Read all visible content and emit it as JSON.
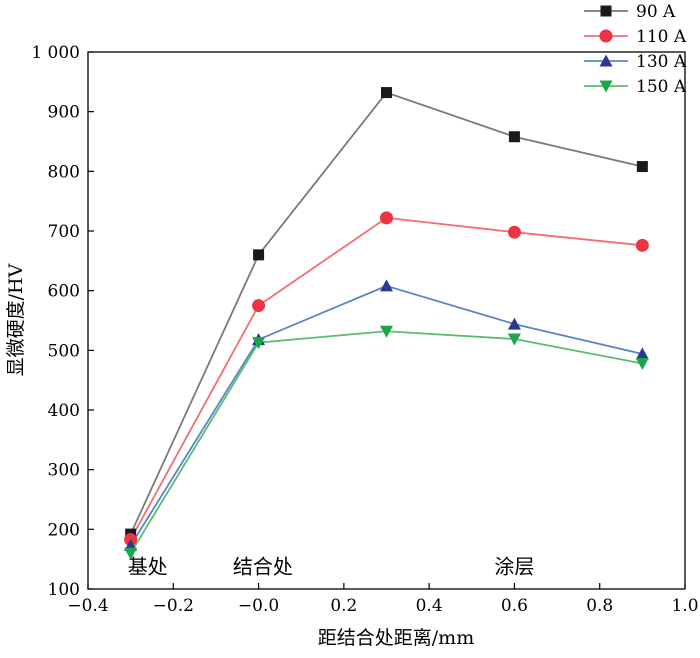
{
  "chart_data": {
    "type": "line",
    "xlabel": "距结合处距离/mm",
    "ylabel": "显微硬度/HV",
    "xlim": [
      -0.4,
      1.0
    ],
    "ylim": [
      100,
      1000
    ],
    "x_ticks": [
      "−0.4",
      "−0.2",
      "−0.0",
      "0.2",
      "0.4",
      "0.6",
      "0.8",
      "1.0"
    ],
    "x_tick_values": [
      -0.4,
      -0.2,
      0.0,
      0.2,
      0.4,
      0.6,
      0.8,
      1.0
    ],
    "y_ticks": [
      "100",
      "200",
      "300",
      "400",
      "500",
      "600",
      "700",
      "800",
      "900",
      "1 000"
    ],
    "y_tick_values": [
      100,
      200,
      300,
      400,
      500,
      600,
      700,
      800,
      900,
      1000
    ],
    "grid": false,
    "legend_position": "top-right",
    "x": [
      -0.3,
      0.0,
      0.3,
      0.6,
      0.9
    ],
    "series": [
      {
        "name": "90 A",
        "values": [
          192,
          660,
          932,
          858,
          808
        ],
        "color": "#7a7a7a",
        "marker_color": "#1a1a1a",
        "marker": "square"
      },
      {
        "name": "110 A",
        "values": [
          183,
          575,
          722,
          698,
          676
        ],
        "color": "#f26d75",
        "marker_color": "#ee3344",
        "marker": "circle"
      },
      {
        "name": "130 A",
        "values": [
          173,
          518,
          608,
          544,
          494
        ],
        "color": "#5a86c8",
        "marker_color": "#2b3a8f",
        "marker": "triangle-up"
      },
      {
        "name": "150 A",
        "values": [
          160,
          513,
          532,
          519,
          478
        ],
        "color": "#5cbb6c",
        "marker_color": "#16a84a",
        "marker": "triangle-down"
      }
    ],
    "annotations": [
      {
        "text": "基处",
        "x": -0.26,
        "y": 138
      },
      {
        "text": "结合处",
        "x": 0.01,
        "y": 138
      },
      {
        "text": "涂层",
        "x": 0.6,
        "y": 138
      }
    ]
  }
}
